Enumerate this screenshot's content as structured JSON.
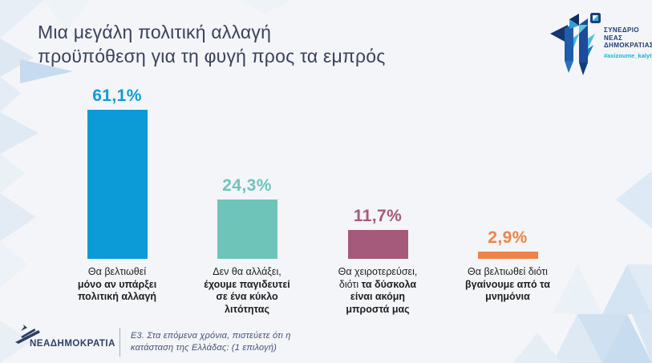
{
  "slide": {
    "title_line1": "Μια μεγάλη πολιτική αλλαγή",
    "title_line2": "προϋπόθεση για τη φυγή προς τα εμπρός"
  },
  "congress": {
    "line1": "ΣΥΝΕΔΡΙΟ",
    "line2": "ΝΕΑΣ",
    "line3": "ΔΗΜΟΚΡΑΤΙΑΣ",
    "hashtag": "#axizoume_kalytera"
  },
  "footer": {
    "brand": "ΝΕΑΔΗΜΟΚΡΑΤΙΑ",
    "q1": "Ε3. Στα επόμενα χρόνια, πιστεύετε ότι η",
    "q2": "κατάσταση της Ελλάδας: (1 επιλογή)"
  },
  "colors": {
    "background": "#f3f5f8",
    "title_navy": "#3a425c",
    "footer_navy": "#2b3f66",
    "congress_navy": "#1d3b75",
    "congress_cyan": "#18b5d9",
    "label_text": "#1e1e1c"
  },
  "chart_data": {
    "type": "bar",
    "title": "Μια μεγάλη πολιτική αλλαγή προϋπόθεση για τη φυγή προς τα εμπρός",
    "question": "Ε3. Στα επόμενα χρόνια, πιστεύετε ότι η κατάσταση της Ελλάδας: (1 επιλογή)",
    "unit": "%",
    "ylim": [
      0,
      65
    ],
    "grid": false,
    "legend": false,
    "categories": [
      "Θα βελτιωθεί μόνο αν υπάρξει πολιτική αλλαγή",
      "Δεν θα αλλάξει, έχουμε παγιδευτεί σε ένα κύκλο λιτότητας",
      "Θα χειροτερεύσει, διότι τα δύσκολα είναι ακόμη μπροστά μας",
      "Θα βελτιωθεί διότι βγαίνουμε από τα μνημόνια"
    ],
    "values": [
      61.1,
      24.3,
      11.7,
      2.9
    ],
    "bars": [
      {
        "value": 61.1,
        "value_label": "61,1%",
        "color": "#0d9bd8",
        "label_lines": [
          {
            "normal": "Θα βελτιωθεί"
          },
          {
            "bold": "μόνο αν υπάρξει"
          },
          {
            "bold": "πολιτική αλλαγή"
          }
        ]
      },
      {
        "value": 24.3,
        "value_label": "24,3%",
        "color": "#6fc4ba",
        "label_lines": [
          {
            "normal": "Δεν θα αλλάξει,"
          },
          {
            "bold": "έχουμε παγιδευτεί"
          },
          {
            "bold": "σε ένα κύκλο"
          },
          {
            "bold": "λιτότητας"
          }
        ]
      },
      {
        "value": 11.7,
        "value_label": "11,7%",
        "color": "#a55a7c",
        "label_lines": [
          {
            "normal": "Θα χειροτερεύσει,"
          },
          {
            "normal": "διότι",
            "bold": "τα δύσκολα"
          },
          {
            "bold": "είναι ακόμη"
          },
          {
            "bold": "μπροστά μας"
          }
        ]
      },
      {
        "value": 2.9,
        "value_label": "2,9%",
        "color": "#ee8347",
        "label_lines": [
          {
            "normal": "Θα βελτιωθεί διότι"
          },
          {
            "bold": "βγαίνουμε από τα"
          },
          {
            "bold": "μνημόνια"
          }
        ]
      }
    ]
  }
}
